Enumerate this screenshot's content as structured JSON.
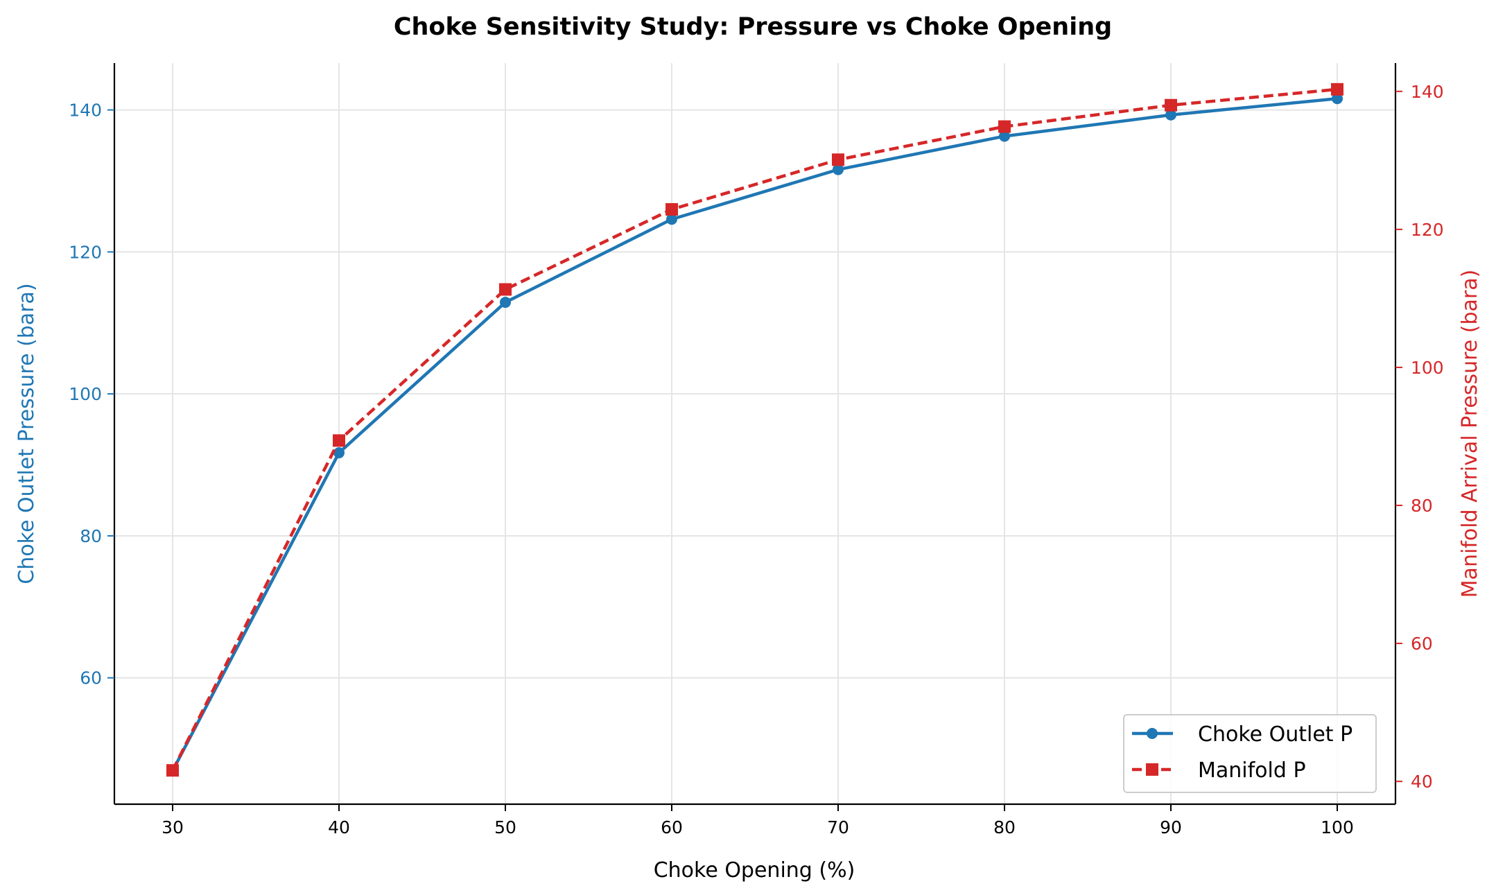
{
  "chart_data": {
    "type": "line",
    "title": "Choke Sensitivity Study: Pressure vs Choke Opening",
    "xlabel": "Choke Opening (%)",
    "ylabel_left": "Choke Outlet Pressure (bara)",
    "ylabel_right": "Manifold Arrival Pressure (bara)",
    "x": [
      30,
      40,
      50,
      60,
      70,
      80,
      90,
      100
    ],
    "x_ticks": [
      30,
      40,
      50,
      60,
      70,
      80,
      90,
      100
    ],
    "xlim": [
      26.5,
      103.5
    ],
    "left_axis": {
      "ylim": [
        42.2,
        146.6
      ],
      "ticks": [
        60,
        80,
        100,
        120,
        140
      ],
      "color": "#1f77b4"
    },
    "right_axis": {
      "ylim": [
        36.7,
        144.1
      ],
      "ticks": [
        40,
        60,
        80,
        100,
        120,
        140
      ],
      "color": "#d62728"
    },
    "series": [
      {
        "name": "Choke Outlet P",
        "axis": "left",
        "color": "#1f77b4",
        "linestyle": "solid",
        "marker": "circle",
        "values": [
          46.9,
          91.7,
          112.9,
          124.6,
          131.6,
          136.3,
          139.3,
          141.6
        ]
      },
      {
        "name": "Manifold P",
        "axis": "right",
        "color": "#d62728",
        "linestyle": "dashed",
        "marker": "square",
        "values": [
          41.6,
          89.4,
          111.3,
          122.9,
          130.1,
          134.9,
          138.0,
          140.3
        ]
      }
    ],
    "grid": true,
    "legend_position": "lower-right"
  }
}
